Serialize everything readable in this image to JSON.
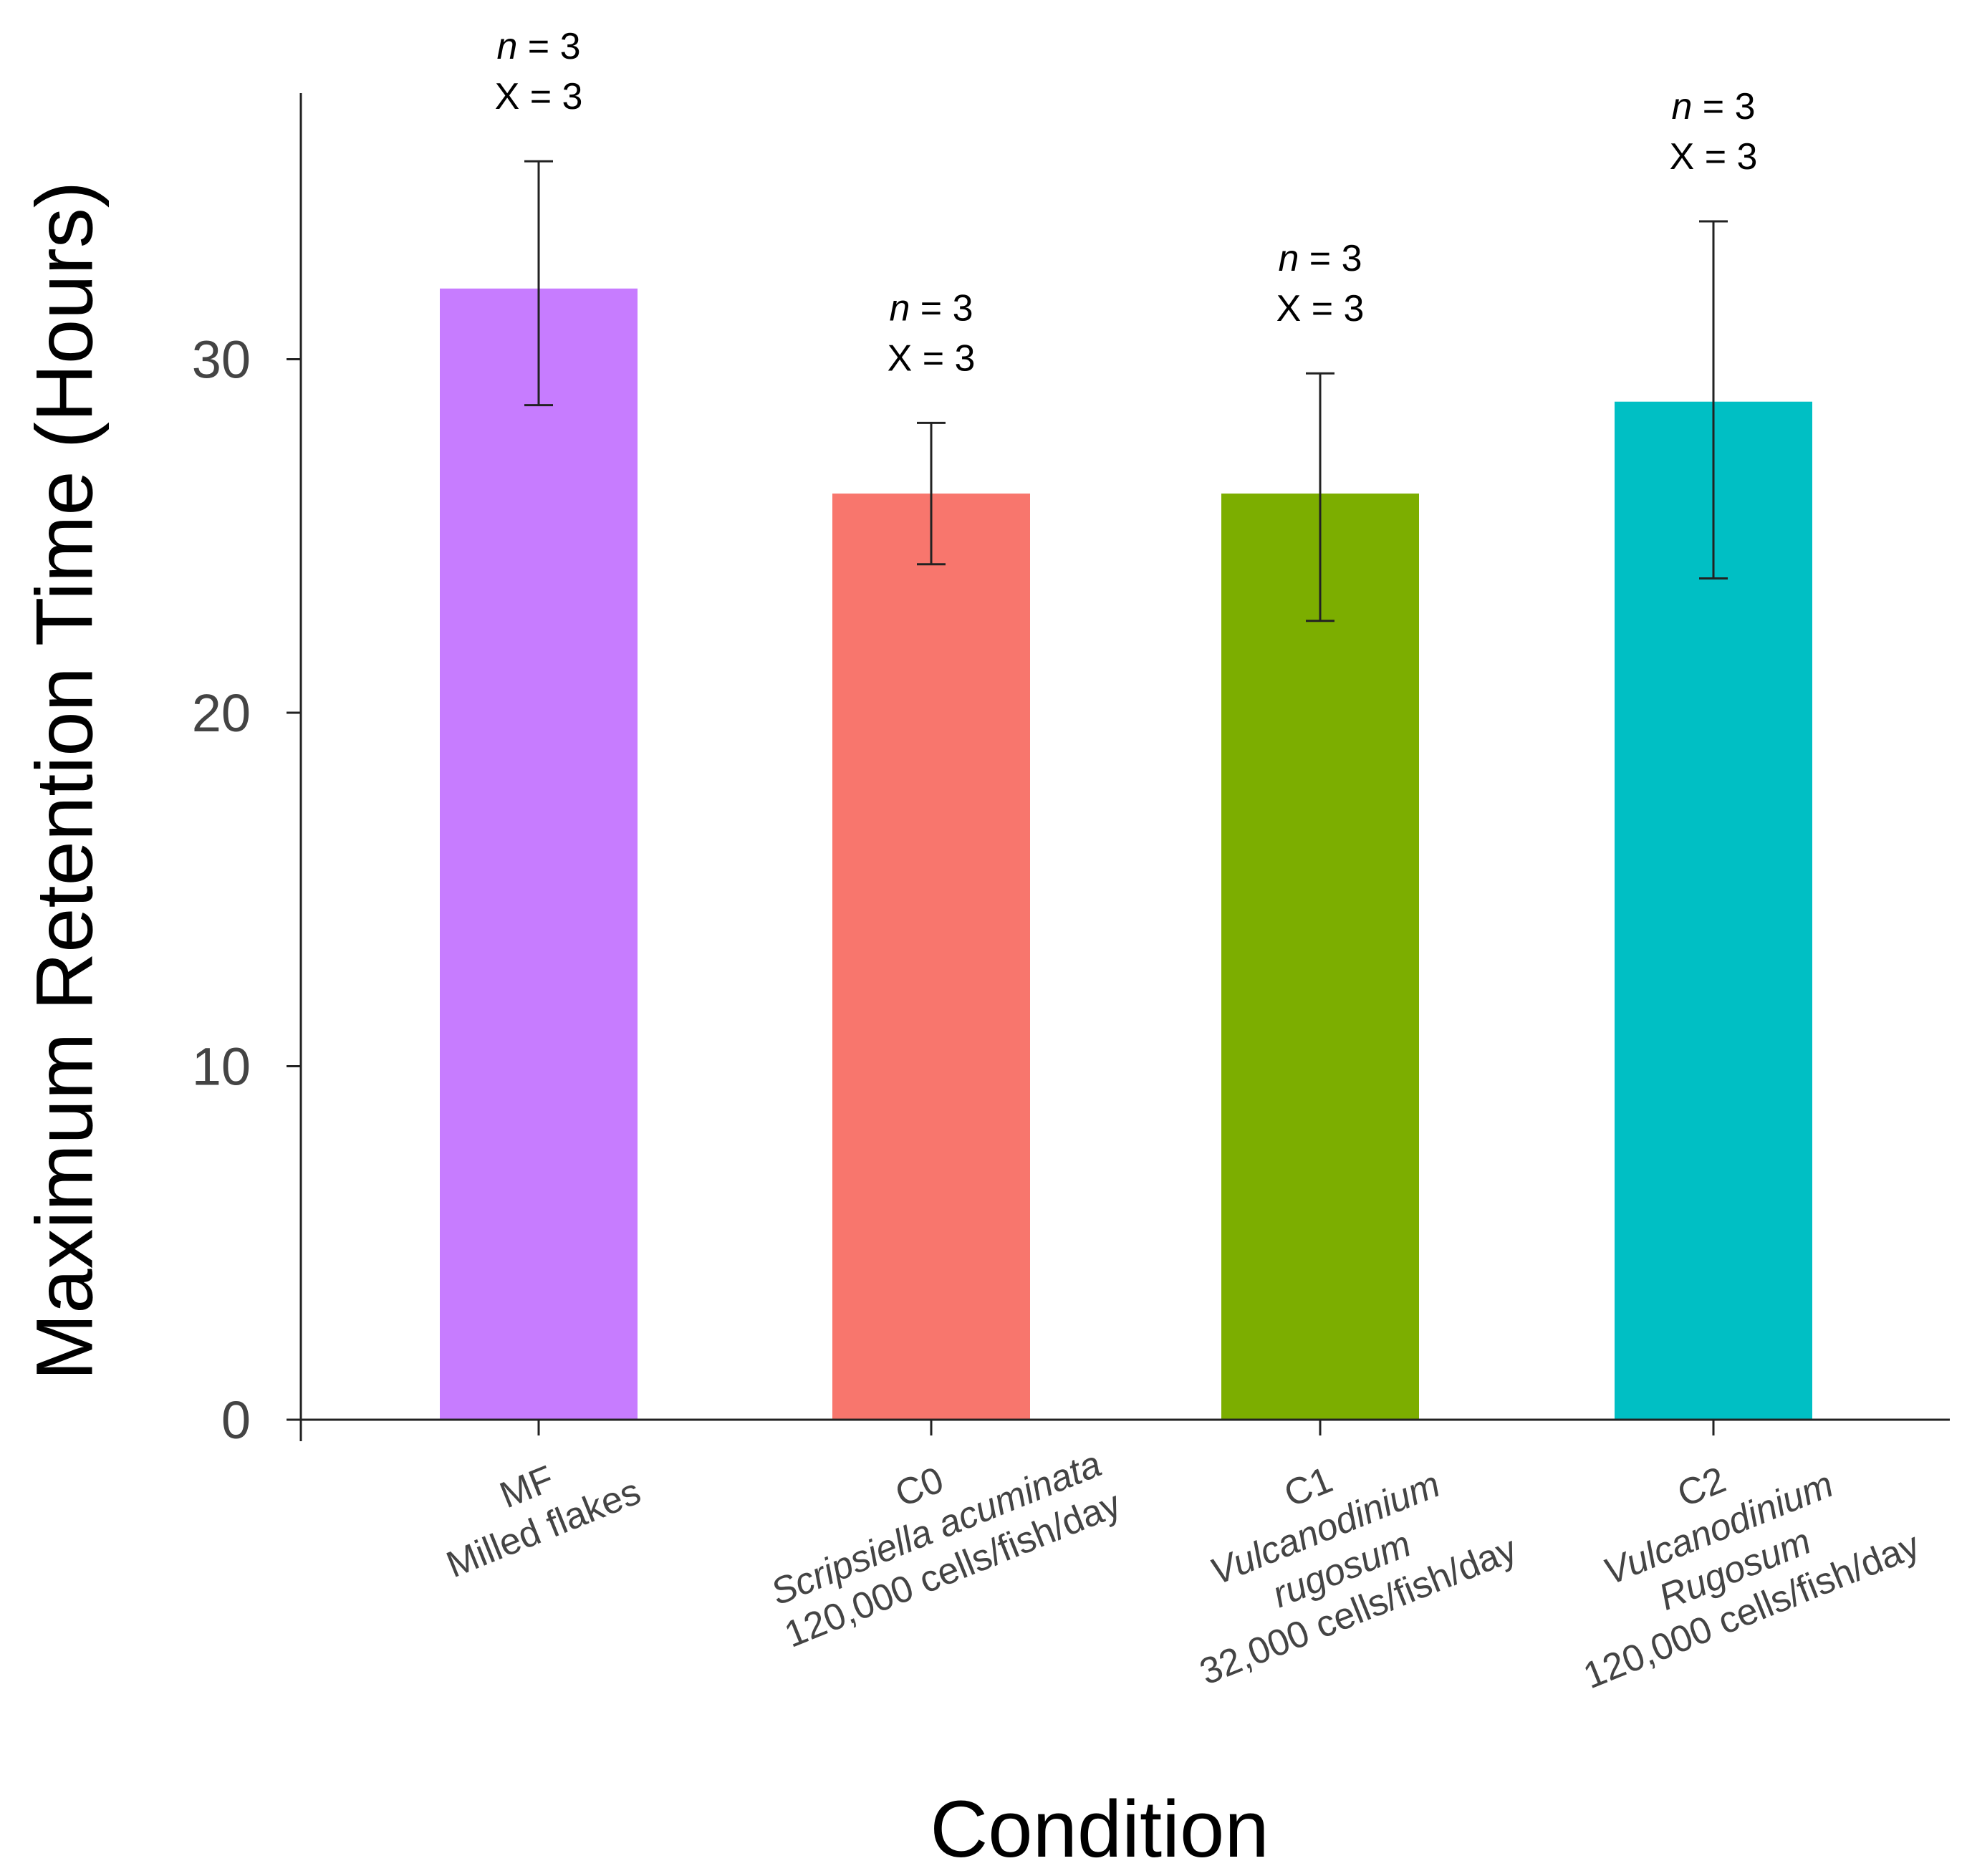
{
  "chart_data": {
    "type": "bar",
    "title": "",
    "xlabel": "Condition",
    "ylabel": "Maximum Retention Time (Hours)",
    "ylim": [
      0,
      37.5
    ],
    "yticks": [
      0,
      10,
      20,
      30
    ],
    "grid": false,
    "categories": [
      {
        "code": "MF",
        "lines": [
          {
            "text": "MF",
            "italic": false
          },
          {
            "text": "Milled flakes",
            "italic": false
          }
        ]
      },
      {
        "code": "C0",
        "lines": [
          {
            "text": "C0",
            "italic": false
          },
          {
            "text": "Scripsiella acuminata",
            "italic": true
          },
          {
            "text": "120,000 cells/fish/day",
            "italic": false
          }
        ]
      },
      {
        "code": "C1",
        "lines": [
          {
            "text": "C1",
            "italic": false
          },
          {
            "text": "Vulcanodinium",
            "italic": true
          },
          {
            "text": "rugosum",
            "italic": true
          },
          {
            "text": "32,000 cells/fish/day",
            "italic": false
          }
        ]
      },
      {
        "code": "C2",
        "lines": [
          {
            "text": "C2",
            "italic": false
          },
          {
            "text": "Vulcanodinium",
            "italic": true
          },
          {
            "text": "Rugosum",
            "italic": true
          },
          {
            "text": "120,000 cells/fish/day",
            "italic": false
          }
        ]
      }
    ],
    "values": [
      32,
      26.2,
      26.2,
      28.8
    ],
    "error_low": [
      28.7,
      24.2,
      22.6,
      23.8
    ],
    "error_high": [
      35.6,
      28.2,
      29.6,
      33.9
    ],
    "colors": [
      "#c77cff",
      "#f8766d",
      "#7cae00",
      "#00bfc4"
    ],
    "annotations": [
      {
        "n_label": "n",
        "n_value": "= 3",
        "x_label": "X = 3"
      },
      {
        "n_label": "n",
        "n_value": "= 3",
        "x_label": "X = 3"
      },
      {
        "n_label": "n",
        "n_value": "= 3",
        "x_label": "X = 3"
      },
      {
        "n_label": "n",
        "n_value": "= 3",
        "x_label": "X = 3"
      }
    ]
  }
}
